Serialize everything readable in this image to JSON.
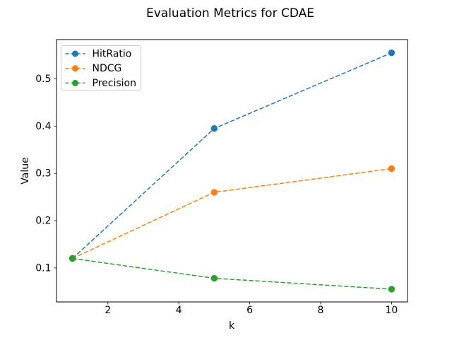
{
  "chart_data": {
    "type": "line",
    "title": "Evaluation Metrics for CDAE",
    "xlabel": "k",
    "ylabel": "Value",
    "x": [
      1,
      5,
      10
    ],
    "series": [
      {
        "name": "HitRatio",
        "color": "#1f77b4",
        "values": [
          0.12,
          0.395,
          0.555
        ],
        "linestyle": "dashed",
        "marker": "circle"
      },
      {
        "name": "NDCG",
        "color": "#ff7f0e",
        "values": [
          0.12,
          0.26,
          0.31
        ],
        "linestyle": "dashed",
        "marker": "circle"
      },
      {
        "name": "Precision",
        "color": "#2ca02c",
        "values": [
          0.12,
          0.078,
          0.055
        ],
        "linestyle": "dashed",
        "marker": "circle"
      }
    ],
    "xticks": [
      2,
      4,
      6,
      8,
      10
    ],
    "yticks": [
      0.1,
      0.2,
      0.3,
      0.4,
      0.5
    ],
    "xlim": [
      0.55,
      10.45
    ],
    "ylim": [
      0.028,
      0.583
    ],
    "grid": false,
    "legend": {
      "position": "upper left",
      "entries": [
        "HitRatio",
        "NDCG",
        "Precision"
      ]
    },
    "colors": {
      "spine": "#000000",
      "text": "#000000",
      "legend_border": "#cccccc",
      "background": "#ffffff"
    }
  }
}
